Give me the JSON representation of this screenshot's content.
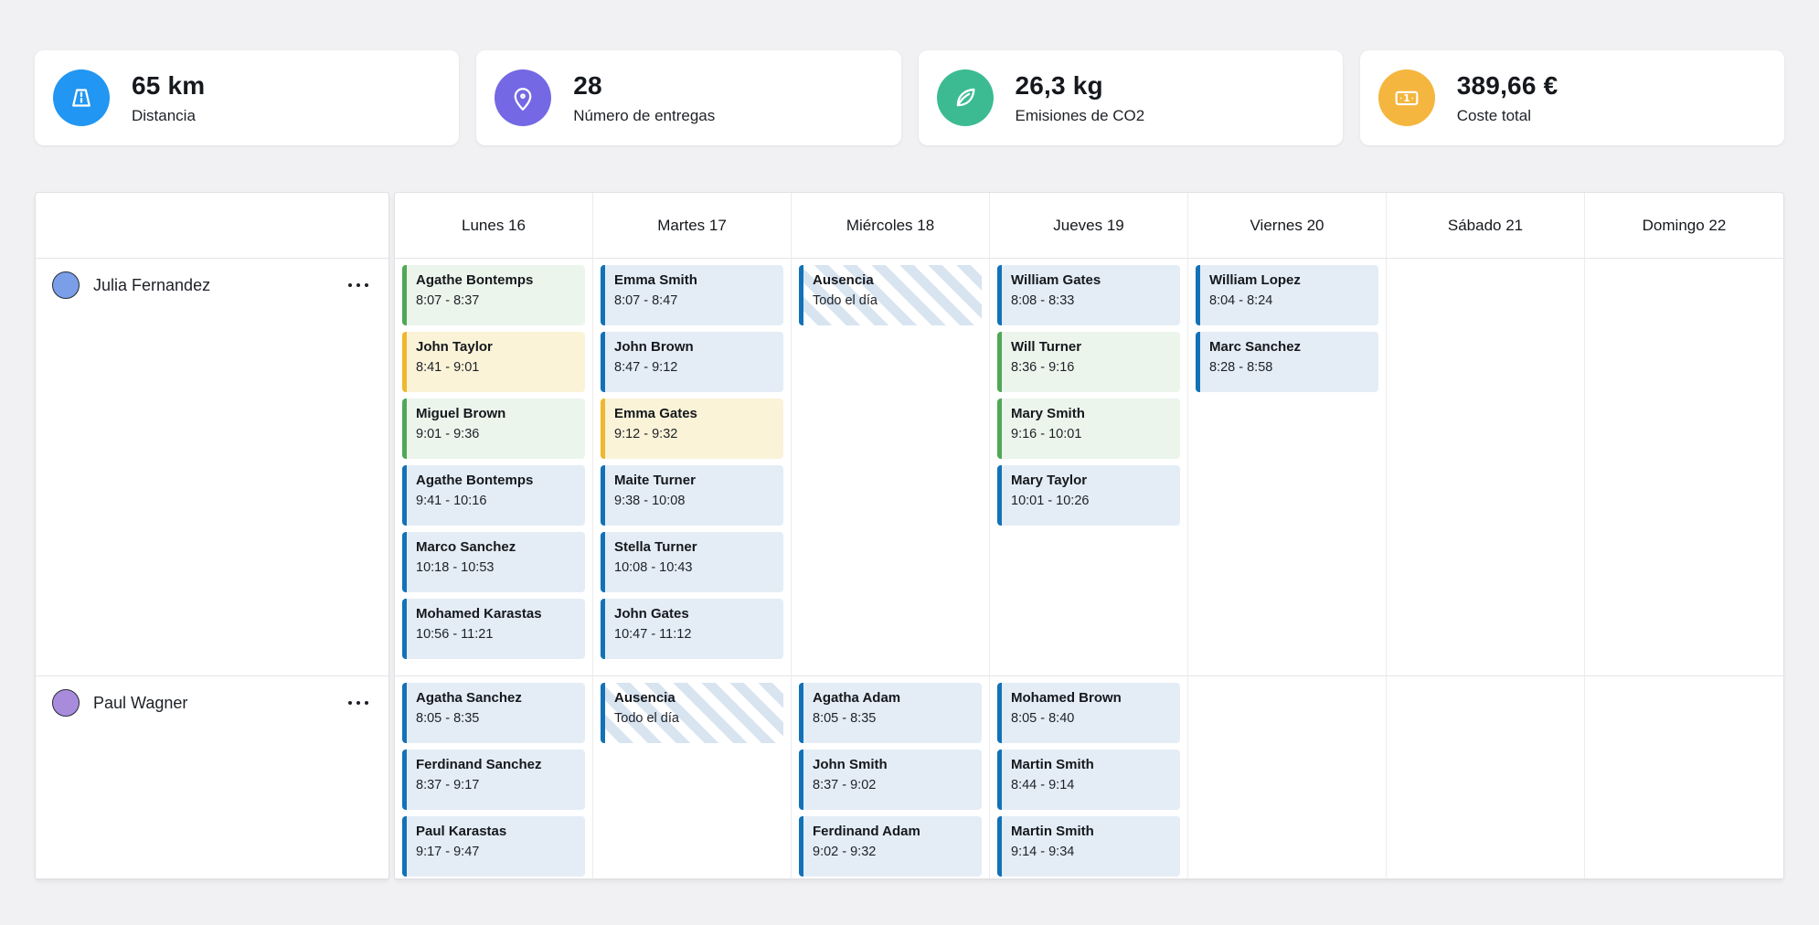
{
  "stats": [
    {
      "value": "65 km",
      "label": "Distancia",
      "icon": "road-icon",
      "color": "#2196f3"
    },
    {
      "value": "28",
      "label": "Número de entregas",
      "icon": "map-pin-icon",
      "color": "#7468e4"
    },
    {
      "value": "26,3 kg",
      "label": "Emisiones de CO2",
      "icon": "leaf-icon",
      "color": "#3cbb93"
    },
    {
      "value": "389,66 €",
      "label": "Coste total",
      "icon": "banknote-icon",
      "color": "#f4b63f"
    }
  ],
  "calendar": {
    "days": [
      "Lunes 16",
      "Martes 17",
      "Miércoles 18",
      "Jueves 19",
      "Viernes 20",
      "Sábado 21",
      "Domingo 22"
    ],
    "event_colors": {
      "blue": {
        "border": "#1372b7",
        "bg": "#e4edf6"
      },
      "green": {
        "border": "#4fa855",
        "bg": "#ecf5ec"
      },
      "yellow": {
        "border": "#eeb82f",
        "bg": "#fbf3d8"
      },
      "absence": {
        "border": "#1372b7",
        "stripe": "#d8e4f0"
      }
    },
    "rows": [
      {
        "person": "Julia Fernandez",
        "avatar_color": "#7b9ee9",
        "days": [
          [
            {
              "title": "Agathe Bontemps",
              "time": "8:07 - 8:37",
              "type": "green"
            },
            {
              "title": "John Taylor",
              "time": "8:41 - 9:01",
              "type": "yellow"
            },
            {
              "title": "Miguel Brown",
              "time": "9:01 - 9:36",
              "type": "green"
            },
            {
              "title": "Agathe Bontemps",
              "time": "9:41 - 10:16",
              "type": "blue"
            },
            {
              "title": "Marco Sanchez",
              "time": "10:18 - 10:53",
              "type": "blue"
            },
            {
              "title": "Mohamed Karastas",
              "time": "10:56 - 11:21",
              "type": "blue"
            }
          ],
          [
            {
              "title": "Emma Smith",
              "time": "8:07 - 8:47",
              "type": "blue"
            },
            {
              "title": "John Brown",
              "time": "8:47 - 9:12",
              "type": "blue"
            },
            {
              "title": "Emma Gates",
              "time": "9:12 - 9:32",
              "type": "yellow"
            },
            {
              "title": "Maite Turner",
              "time": "9:38 - 10:08",
              "type": "blue"
            },
            {
              "title": "Stella Turner",
              "time": "10:08 - 10:43",
              "type": "blue"
            },
            {
              "title": "John Gates",
              "time": "10:47 - 11:12",
              "type": "blue"
            }
          ],
          [
            {
              "title": "Ausencia",
              "time": "Todo el día",
              "type": "absence"
            }
          ],
          [
            {
              "title": "William Gates",
              "time": "8:08 - 8:33",
              "type": "blue"
            },
            {
              "title": "Will Turner",
              "time": "8:36 - 9:16",
              "type": "green"
            },
            {
              "title": "Mary Smith",
              "time": "9:16 - 10:01",
              "type": "green"
            },
            {
              "title": "Mary Taylor",
              "time": "10:01 - 10:26",
              "type": "blue"
            }
          ],
          [
            {
              "title": "William Lopez",
              "time": "8:04 - 8:24",
              "type": "blue"
            },
            {
              "title": "Marc Sanchez",
              "time": "8:28 - 8:58",
              "type": "blue"
            }
          ],
          [],
          []
        ]
      },
      {
        "person": "Paul Wagner",
        "avatar_color": "#a98bdc",
        "days": [
          [
            {
              "title": "Agatha Sanchez",
              "time": "8:05 - 8:35",
              "type": "blue"
            },
            {
              "title": "Ferdinand Sanchez",
              "time": "8:37 - 9:17",
              "type": "blue"
            },
            {
              "title": "Paul Karastas",
              "time": "9:17 - 9:47",
              "type": "blue"
            }
          ],
          [
            {
              "title": "Ausencia",
              "time": "Todo el día",
              "type": "absence"
            }
          ],
          [
            {
              "title": "Agatha Adam",
              "time": "8:05 - 8:35",
              "type": "blue"
            },
            {
              "title": "John Smith",
              "time": "8:37 - 9:02",
              "type": "blue"
            },
            {
              "title": "Ferdinand Adam",
              "time": "9:02 - 9:32",
              "type": "blue"
            }
          ],
          [
            {
              "title": "Mohamed Brown",
              "time": "8:05 - 8:40",
              "type": "blue"
            },
            {
              "title": "Martin Smith",
              "time": "8:44 - 9:14",
              "type": "blue"
            },
            {
              "title": "Martin Smith",
              "time": "9:14 - 9:34",
              "type": "blue"
            }
          ],
          [],
          [],
          []
        ]
      }
    ]
  }
}
